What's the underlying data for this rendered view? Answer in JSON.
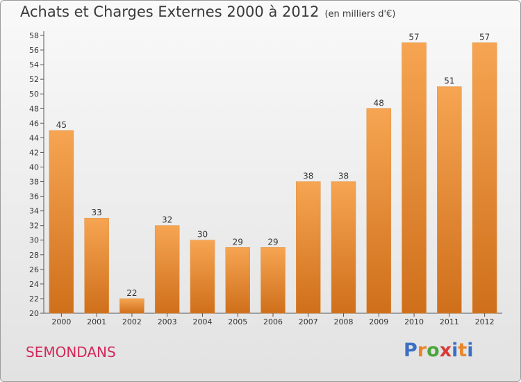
{
  "header": {
    "title": "Achats et Charges Externes 2000 à 2012",
    "subtitle": "(en milliers d'€)"
  },
  "footer": {
    "commune": "SEMONDANS",
    "brand": "Proxiti",
    "brand_letters": [
      "P",
      "r",
      "o",
      "x",
      "i",
      "t",
      "i"
    ],
    "brand_colors": [
      "#3b6fc4",
      "#e8862a",
      "#4aa63c",
      "#d83a3a",
      "#3b6fc4",
      "#e8862a",
      "#3b6fc4"
    ]
  },
  "colors": {
    "bar_top": "#f6a552",
    "bar_bottom": "#cf6f1b",
    "axis": "#555555",
    "grid": "#555555",
    "text": "#333333"
  },
  "chart_data": {
    "type": "bar",
    "title": "Achats et Charges Externes 2000 à 2012",
    "subtitle": "(en milliers d'€)",
    "categories": [
      "2000",
      "2001",
      "2002",
      "2003",
      "2004",
      "2005",
      "2006",
      "2007",
      "2008",
      "2009",
      "2010",
      "2011",
      "2012"
    ],
    "values": [
      45,
      33,
      22,
      32,
      30,
      29,
      29,
      38,
      38,
      48,
      57,
      51,
      57
    ],
    "ylim": [
      20,
      58
    ],
    "yticks": [
      20,
      22,
      24,
      26,
      28,
      30,
      32,
      34,
      36,
      38,
      40,
      42,
      44,
      46,
      48,
      50,
      52,
      54,
      56,
      58
    ],
    "data_labels": true,
    "legend": "none",
    "grid": false
  }
}
